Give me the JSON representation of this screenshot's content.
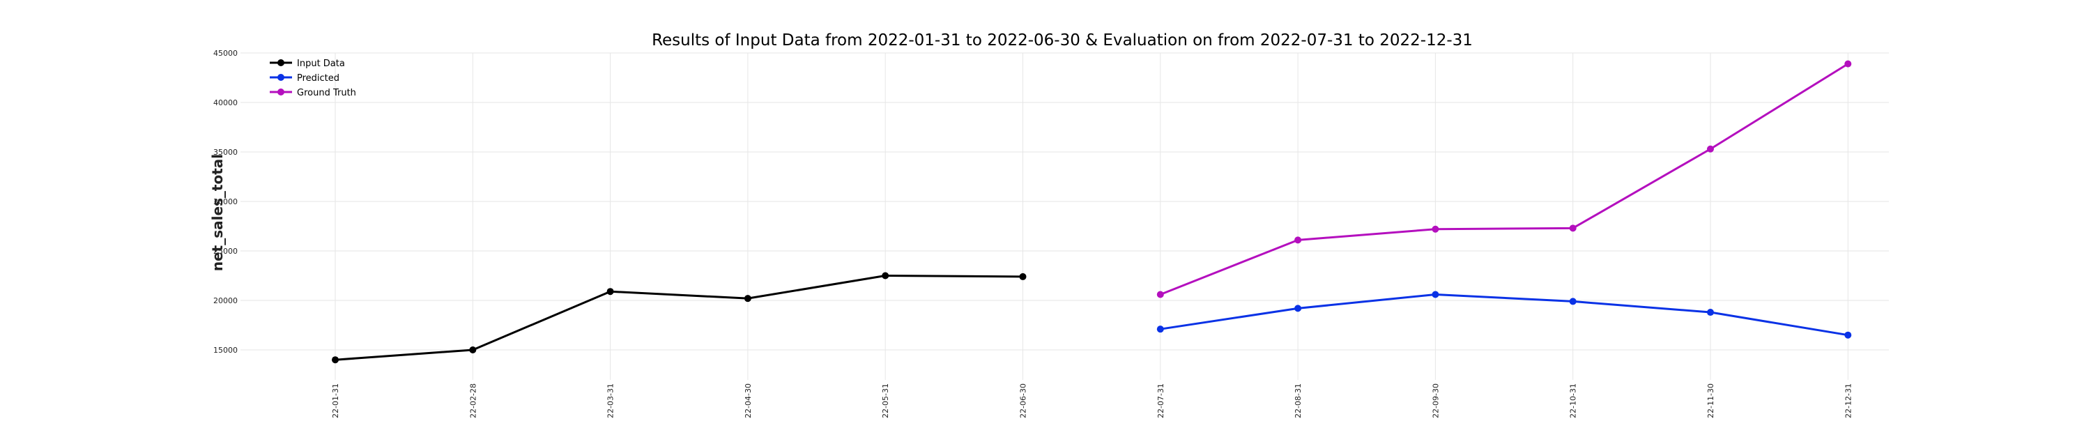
{
  "chart_data": {
    "type": "line",
    "title": "Results of Input Data from 2022-01-31 to 2022-06-30 & Evaluation on from 2022-07-31 to 2022-12-31",
    "xlabel": "",
    "ylabel": "net_sales_total",
    "ylim": [
      12000,
      45000
    ],
    "yticks": [
      15000,
      20000,
      25000,
      30000,
      35000,
      40000,
      45000
    ],
    "ytick_labels": [
      "15000",
      "20000",
      "25000",
      "30000",
      "35000",
      "40000",
      "45000"
    ],
    "x": [
      "2022-01-31",
      "2022-02-28",
      "2022-03-31",
      "2022-04-30",
      "2022-05-31",
      "2022-06-30",
      "2022-07-31",
      "2022-08-31",
      "2022-09-30",
      "2022-10-31",
      "2022-11-30",
      "2022-12-31"
    ],
    "xtick_labels": [
      "022-01-31",
      "022-02-28",
      "022-03-31",
      "022-04-30",
      "022-05-31",
      "022-06-30",
      "022-07-31",
      "022-08-31",
      "022-09-30",
      "022-10-31",
      "022-11-30",
      "022-12-31"
    ],
    "grid": true,
    "legend_position": "top-left",
    "series": [
      {
        "name": "Input Data",
        "color": "#000000",
        "x": [
          "2022-01-31",
          "2022-02-28",
          "2022-03-31",
          "2022-04-30",
          "2022-05-31",
          "2022-06-30"
        ],
        "values": [
          14000,
          15000,
          20900,
          20200,
          22500,
          22400
        ]
      },
      {
        "name": "Predicted",
        "color": "#0a32e6",
        "x": [
          "2022-07-31",
          "2022-08-31",
          "2022-09-30",
          "2022-10-31",
          "2022-11-30",
          "2022-12-31"
        ],
        "values": [
          17100,
          19200,
          20600,
          19900,
          18800,
          16500
        ]
      },
      {
        "name": "Ground Truth",
        "color": "#b40fbe",
        "x": [
          "2022-07-31",
          "2022-08-31",
          "2022-09-30",
          "2022-10-31",
          "2022-11-30",
          "2022-12-31"
        ],
        "values": [
          20600,
          26100,
          27200,
          27300,
          35300,
          43900
        ]
      }
    ]
  }
}
